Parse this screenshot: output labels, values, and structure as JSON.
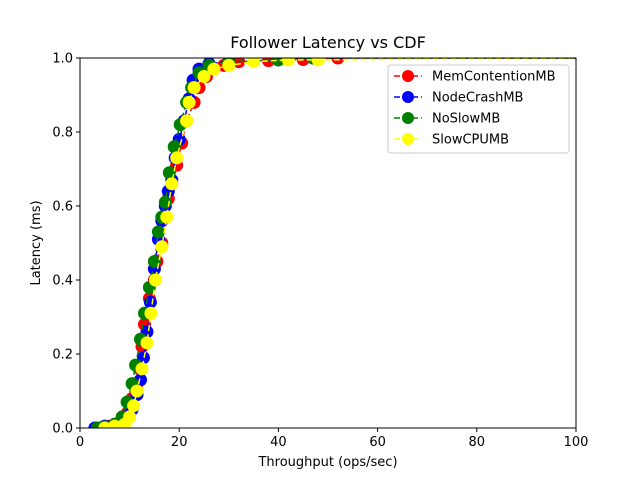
{
  "chart_data": {
    "type": "line",
    "title": "Follower Latency vs CDF",
    "xlabel": "Throughput (ops/sec)",
    "ylabel": "Latency (ms)",
    "xlim": [
      0,
      100
    ],
    "ylim": [
      0,
      1
    ],
    "x_ticks": [
      "0",
      "20",
      "40",
      "60",
      "80",
      "100"
    ],
    "y_ticks": [
      "0.0",
      "0.2",
      "0.4",
      "0.6",
      "0.8",
      "1.0"
    ],
    "grid": false,
    "legend_position": "top-right",
    "series": [
      {
        "name": "MemContentionMB",
        "color": "#ff0000",
        "line_style": "dashed",
        "marker": "circle",
        "points": [
          [
            4,
            0
          ],
          [
            6,
            0.005
          ],
          [
            8,
            0.015
          ],
          [
            9.5,
            0.04
          ],
          [
            10.5,
            0.08
          ],
          [
            11.5,
            0.12
          ],
          [
            12,
            0.16
          ],
          [
            12.5,
            0.22
          ],
          [
            13,
            0.28
          ],
          [
            14,
            0.35
          ],
          [
            15,
            0.4
          ],
          [
            15.5,
            0.45
          ],
          [
            16.5,
            0.5
          ],
          [
            17.2,
            0.57
          ],
          [
            17.8,
            0.62
          ],
          [
            18.5,
            0.66
          ],
          [
            19.5,
            0.71
          ],
          [
            20.5,
            0.77
          ],
          [
            21.5,
            0.83
          ],
          [
            23,
            0.88
          ],
          [
            24,
            0.92
          ],
          [
            25.5,
            0.95
          ],
          [
            27,
            0.97
          ],
          [
            29,
            0.98
          ],
          [
            32,
            0.99
          ],
          [
            38,
            0.993
          ],
          [
            45,
            0.996
          ],
          [
            52,
            1.0
          ],
          [
            100,
            1.0
          ]
        ]
      },
      {
        "name": "NodeCrashMB",
        "color": "#0000ff",
        "line_style": "dashed",
        "marker": "circle",
        "points": [
          [
            3,
            0
          ],
          [
            5,
            0.005
          ],
          [
            7,
            0.01
          ],
          [
            9,
            0.03
          ],
          [
            10.5,
            0.05
          ],
          [
            11.5,
            0.09
          ],
          [
            12.2,
            0.13
          ],
          [
            12.8,
            0.19
          ],
          [
            13.5,
            0.26
          ],
          [
            14.2,
            0.34
          ],
          [
            15,
            0.43
          ],
          [
            15.8,
            0.51
          ],
          [
            16.5,
            0.56
          ],
          [
            17.2,
            0.6
          ],
          [
            17.8,
            0.64
          ],
          [
            18.5,
            0.67
          ],
          [
            19.2,
            0.73
          ],
          [
            20,
            0.78
          ],
          [
            21,
            0.83
          ],
          [
            22,
            0.89
          ],
          [
            22.8,
            0.94
          ],
          [
            24,
            0.97
          ],
          [
            26,
            0.985
          ],
          [
            30,
            0.99
          ],
          [
            40,
            0.995
          ],
          [
            47,
            1.0
          ],
          [
            100,
            1.0
          ]
        ]
      },
      {
        "name": "NoSlowMB",
        "color": "#008000",
        "line_style": "dashed",
        "marker": "circle",
        "points": [
          [
            3.5,
            0
          ],
          [
            5,
            0.003
          ],
          [
            7,
            0.01
          ],
          [
            8.5,
            0.03
          ],
          [
            9.5,
            0.07
          ],
          [
            10.5,
            0.12
          ],
          [
            11.2,
            0.17
          ],
          [
            12.2,
            0.24
          ],
          [
            13,
            0.31
          ],
          [
            14,
            0.38
          ],
          [
            15,
            0.45
          ],
          [
            15.8,
            0.53
          ],
          [
            16.5,
            0.57
          ],
          [
            17.2,
            0.61
          ],
          [
            18,
            0.69
          ],
          [
            19,
            0.76
          ],
          [
            20.2,
            0.82
          ],
          [
            21.5,
            0.88
          ],
          [
            22.5,
            0.92
          ],
          [
            24,
            0.96
          ],
          [
            26,
            0.98
          ],
          [
            30,
            0.99
          ],
          [
            40,
            0.995
          ],
          [
            47,
            1.0
          ],
          [
            100,
            1.0
          ]
        ]
      },
      {
        "name": "SlowCPUMB",
        "color": "#ffff00",
        "line_style": "dashed",
        "marker": "circle",
        "points": [
          [
            5,
            0
          ],
          [
            7,
            0.005
          ],
          [
            9,
            0.01
          ],
          [
            10,
            0.03
          ],
          [
            10.8,
            0.06
          ],
          [
            11.5,
            0.1
          ],
          [
            12.5,
            0.16
          ],
          [
            13.5,
            0.23
          ],
          [
            14.3,
            0.31
          ],
          [
            15.2,
            0.4
          ],
          [
            16.5,
            0.49
          ],
          [
            17.5,
            0.57
          ],
          [
            18.5,
            0.66
          ],
          [
            19.5,
            0.73
          ],
          [
            21.5,
            0.83
          ],
          [
            22,
            0.88
          ],
          [
            23,
            0.92
          ],
          [
            25,
            0.95
          ],
          [
            27,
            0.97
          ],
          [
            30,
            0.98
          ],
          [
            35,
            0.99
          ],
          [
            42,
            0.995
          ],
          [
            48,
            0.995
          ],
          [
            100,
            1.0
          ]
        ]
      }
    ]
  }
}
